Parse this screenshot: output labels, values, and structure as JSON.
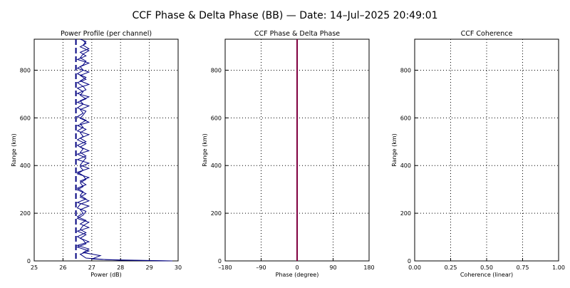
{
  "title": "CCF Phase & Delta Phase (BB) — Date: 14–Jul–2025 20:49:01",
  "colors": {
    "trace": "#000080",
    "phase_line": "#800040",
    "frame": "#000000",
    "grid": "#000000"
  },
  "chart_data": [
    {
      "type": "line",
      "title": "Power Profile (per channel)",
      "xlabel": "Power (dB)",
      "ylabel": "Range (km)",
      "xlim": [
        25,
        30
      ],
      "ylim": [
        0,
        930
      ],
      "xticks": [
        "25",
        "26",
        "27",
        "28",
        "29",
        "30"
      ],
      "yticks": [
        "0",
        "200",
        "400",
        "600",
        "800"
      ],
      "grid": true,
      "reference_line": {
        "x": 26.45,
        "style": "dashed"
      },
      "series": [
        {
          "values": [
            [
              29.6,
              0
            ],
            [
              28.0,
              3
            ],
            [
              27.0,
              8
            ],
            [
              27.3,
              22
            ],
            [
              26.7,
              35
            ],
            [
              26.9,
              50
            ],
            [
              26.5,
              65
            ],
            [
              26.9,
              80
            ],
            [
              26.6,
              95
            ],
            [
              26.8,
              110
            ],
            [
              26.5,
              125
            ],
            [
              26.9,
              140
            ],
            [
              26.6,
              155
            ],
            [
              26.8,
              170
            ],
            [
              26.5,
              185
            ],
            [
              26.7,
              200
            ],
            [
              26.6,
              215
            ],
            [
              26.9,
              230
            ],
            [
              26.5,
              245
            ],
            [
              26.8,
              260
            ],
            [
              26.6,
              275
            ],
            [
              26.7,
              290
            ],
            [
              26.5,
              305
            ],
            [
              26.8,
              320
            ],
            [
              26.6,
              335
            ],
            [
              26.9,
              350
            ],
            [
              26.5,
              365
            ],
            [
              26.7,
              380
            ],
            [
              26.6,
              395
            ],
            [
              26.9,
              410
            ],
            [
              26.5,
              425
            ],
            [
              26.8,
              440
            ],
            [
              26.6,
              455
            ],
            [
              26.7,
              470
            ],
            [
              26.5,
              485
            ],
            [
              26.8,
              500
            ],
            [
              26.6,
              515
            ],
            [
              26.9,
              530
            ],
            [
              26.5,
              545
            ],
            [
              26.7,
              560
            ],
            [
              26.6,
              575
            ],
            [
              26.8,
              590
            ],
            [
              26.5,
              605
            ],
            [
              26.7,
              620
            ],
            [
              26.6,
              635
            ],
            [
              26.9,
              650
            ],
            [
              26.5,
              665
            ],
            [
              26.8,
              680
            ],
            [
              26.6,
              695
            ],
            [
              26.7,
              710
            ],
            [
              26.5,
              725
            ],
            [
              26.9,
              740
            ],
            [
              26.6,
              755
            ],
            [
              26.8,
              770
            ],
            [
              26.5,
              785
            ],
            [
              26.7,
              800
            ],
            [
              26.6,
              815
            ],
            [
              26.9,
              830
            ],
            [
              26.5,
              845
            ],
            [
              26.8,
              860
            ],
            [
              26.6,
              875
            ],
            [
              26.9,
              890
            ],
            [
              26.7,
              905
            ],
            [
              26.8,
              920
            ],
            [
              26.6,
              930
            ]
          ]
        },
        {
          "values": [
            [
              29.8,
              0
            ],
            [
              27.5,
              5
            ],
            [
              26.8,
              12
            ],
            [
              26.6,
              28
            ],
            [
              26.9,
              42
            ],
            [
              26.5,
              58
            ],
            [
              26.8,
              72
            ],
            [
              26.7,
              88
            ],
            [
              26.5,
              102
            ],
            [
              26.8,
              118
            ],
            [
              26.6,
              132
            ],
            [
              26.7,
              148
            ],
            [
              26.9,
              162
            ],
            [
              26.5,
              178
            ],
            [
              26.7,
              192
            ],
            [
              26.8,
              208
            ],
            [
              26.5,
              222
            ],
            [
              26.6,
              238
            ],
            [
              26.9,
              252
            ],
            [
              26.6,
              268
            ],
            [
              26.8,
              282
            ],
            [
              26.5,
              298
            ],
            [
              26.7,
              312
            ],
            [
              26.6,
              328
            ],
            [
              26.8,
              342
            ],
            [
              26.7,
              358
            ],
            [
              26.5,
              372
            ],
            [
              26.9,
              388
            ],
            [
              26.6,
              402
            ],
            [
              26.7,
              418
            ],
            [
              26.8,
              432
            ],
            [
              26.5,
              448
            ],
            [
              26.9,
              462
            ],
            [
              26.6,
              478
            ],
            [
              26.8,
              492
            ],
            [
              26.5,
              508
            ],
            [
              26.7,
              522
            ],
            [
              26.6,
              538
            ],
            [
              26.8,
              552
            ],
            [
              26.5,
              568
            ],
            [
              26.9,
              582
            ],
            [
              26.6,
              598
            ],
            [
              26.7,
              612
            ],
            [
              26.8,
              628
            ],
            [
              26.5,
              642
            ],
            [
              26.7,
              658
            ],
            [
              26.6,
              672
            ],
            [
              26.9,
              688
            ],
            [
              26.5,
              702
            ],
            [
              26.8,
              718
            ],
            [
              26.7,
              732
            ],
            [
              26.5,
              748
            ],
            [
              26.8,
              762
            ],
            [
              26.6,
              778
            ],
            [
              26.9,
              792
            ],
            [
              26.5,
              808
            ],
            [
              26.7,
              822
            ],
            [
              26.8,
              838
            ],
            [
              26.6,
              852
            ],
            [
              26.7,
              868
            ],
            [
              26.9,
              882
            ],
            [
              26.6,
              898
            ],
            [
              26.8,
              912
            ],
            [
              26.7,
              925
            ]
          ]
        }
      ]
    },
    {
      "type": "line",
      "title": "CCF Phase & Delta Phase",
      "xlabel": "Phase (degree)",
      "ylabel": "Range (km)",
      "xlim": [
        -180,
        180
      ],
      "ylim": [
        0,
        930
      ],
      "xticks": [
        "–180",
        "–90",
        "0",
        "90",
        "180"
      ],
      "yticks": [
        "0",
        "200",
        "400",
        "600",
        "800"
      ],
      "grid": true,
      "series": [
        {
          "values": [
            [
              0,
              0
            ],
            [
              0,
              930
            ]
          ]
        }
      ]
    },
    {
      "type": "line",
      "title": "CCF Coherence",
      "xlabel": "Coherence (linear)",
      "ylabel": "Range (km)",
      "xlim": [
        0,
        1
      ],
      "ylim": [
        0,
        930
      ],
      "xticks": [
        "0.00",
        "0.25",
        "0.50",
        "0.75",
        "1.00"
      ],
      "yticks": [
        "0",
        "200",
        "400",
        "600",
        "800"
      ],
      "grid": true,
      "series": []
    }
  ]
}
